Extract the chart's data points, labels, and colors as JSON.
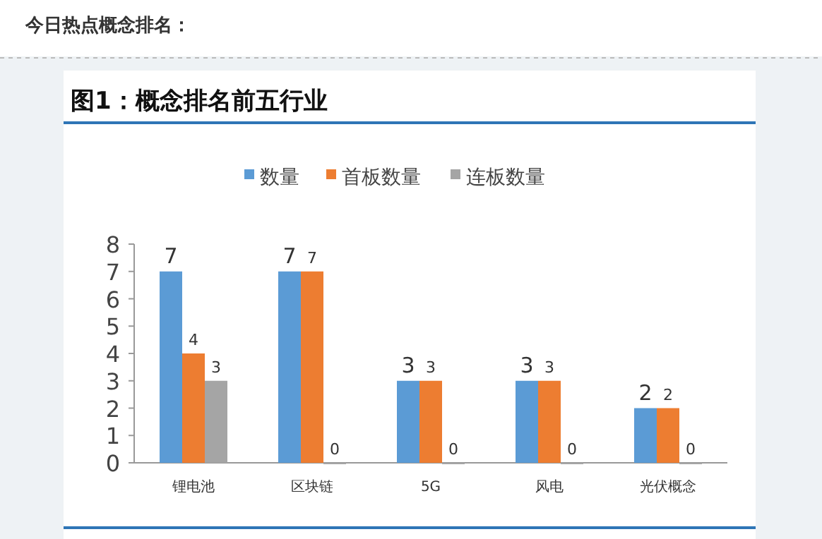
{
  "chart_data": {
    "type": "bar",
    "title": "图1：概念排名前五行业",
    "annotations": [
      "今日热点概念排名："
    ],
    "categories": [
      "锂电池",
      "区块链",
      "5G",
      "风电",
      "光伏概念"
    ],
    "series": [
      {
        "name": "数量",
        "color": "#5b9bd5",
        "values": [
          7,
          7,
          3,
          3,
          2
        ]
      },
      {
        "name": "首板数量",
        "color": "#ed7d31",
        "values": [
          4,
          7,
          3,
          3,
          2
        ]
      },
      {
        "name": "连板数量",
        "color": "#a5a5a5",
        "values": [
          3,
          0,
          0,
          0,
          0
        ]
      }
    ],
    "ylim": [
      0,
      8
    ],
    "yticks": [
      0,
      1,
      2,
      3,
      4,
      5,
      6,
      7,
      8
    ],
    "grid": false,
    "legend": "top",
    "data_labels": true
  }
}
